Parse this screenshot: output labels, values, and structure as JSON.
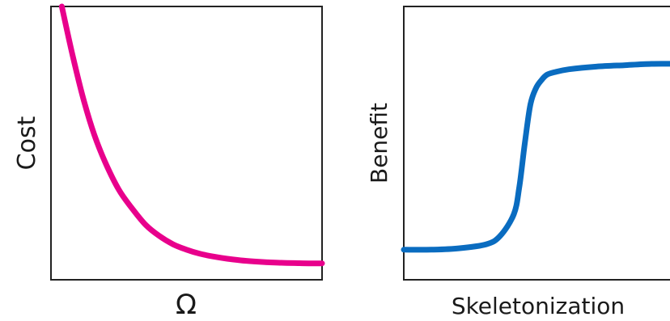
{
  "chart_data": [
    {
      "type": "line",
      "title": "",
      "xlabel": "Ω",
      "ylabel": "Cost",
      "xlim": [
        0,
        1
      ],
      "ylim": [
        0,
        1
      ],
      "grid": false,
      "ticks": false,
      "series": [
        {
          "color": "#e8008c",
          "x": [
            0.04,
            0.08,
            0.12,
            0.16,
            0.2,
            0.25,
            0.3,
            0.35,
            0.4,
            0.45,
            0.5,
            0.55,
            0.6,
            0.65,
            0.7,
            0.75,
            0.8,
            0.85,
            0.9,
            0.95,
            1.0
          ],
          "y": [
            1.0,
            0.82,
            0.66,
            0.53,
            0.43,
            0.33,
            0.26,
            0.2,
            0.16,
            0.13,
            0.11,
            0.095,
            0.085,
            0.077,
            0.071,
            0.067,
            0.064,
            0.062,
            0.061,
            0.06,
            0.06
          ]
        }
      ]
    },
    {
      "type": "line",
      "title": "",
      "xlabel": "Skeletonization",
      "ylabel": "Benefit",
      "xlim": [
        0,
        1
      ],
      "ylim": [
        0,
        1
      ],
      "grid": false,
      "ticks": false,
      "series": [
        {
          "color": "#0a6cc0",
          "x": [
            0.0,
            0.1,
            0.2,
            0.3,
            0.35,
            0.4,
            0.42,
            0.44,
            0.46,
            0.48,
            0.5,
            0.52,
            0.55,
            0.6,
            0.7,
            0.8,
            0.9,
            1.0
          ],
          "y": [
            0.11,
            0.11,
            0.115,
            0.13,
            0.16,
            0.24,
            0.34,
            0.5,
            0.64,
            0.7,
            0.73,
            0.75,
            0.76,
            0.77,
            0.78,
            0.785,
            0.79,
            0.79
          ]
        }
      ]
    }
  ]
}
